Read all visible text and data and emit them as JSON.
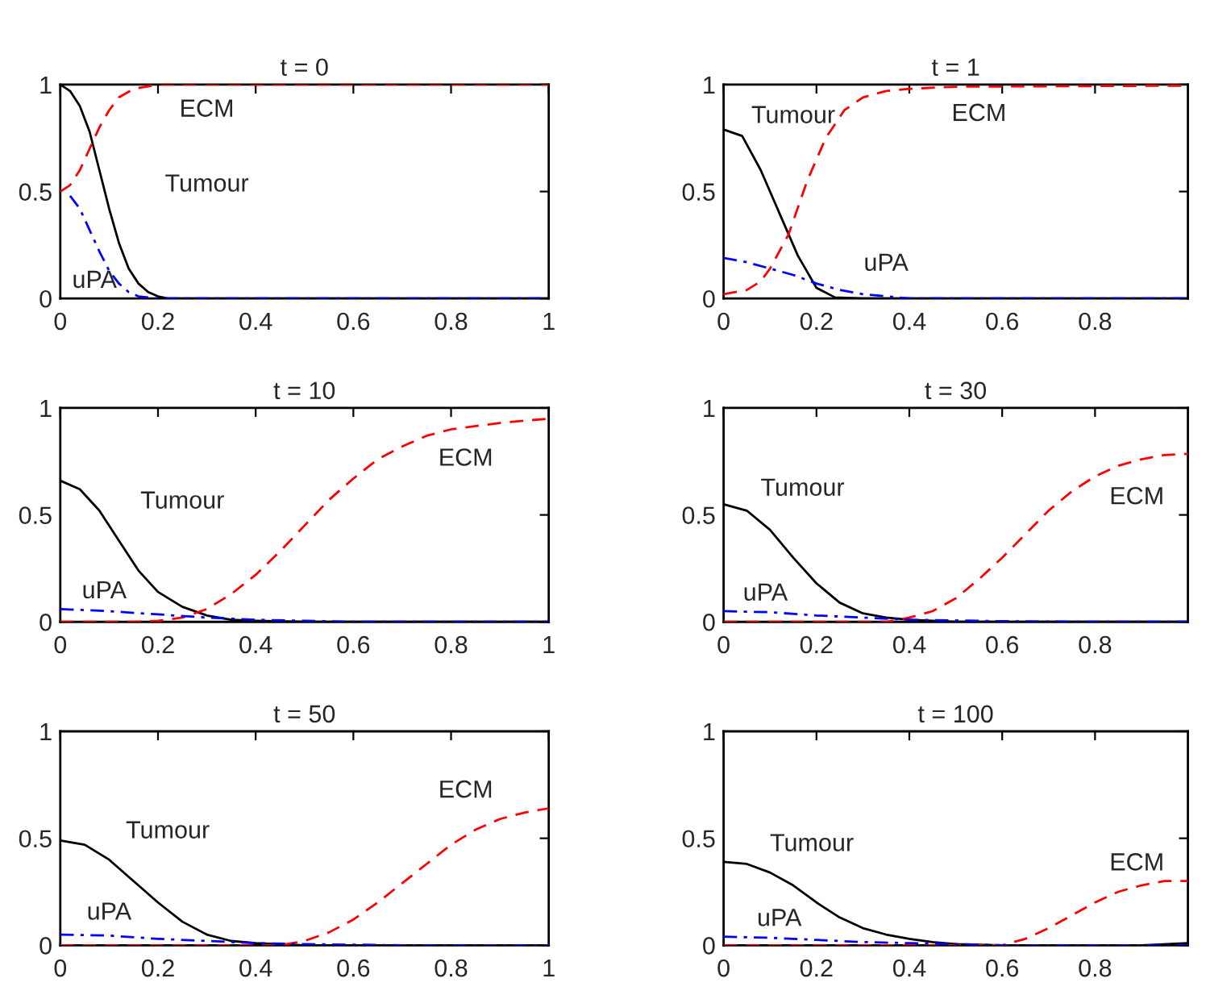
{
  "chart_data": [
    {
      "type": "line",
      "title": "t = 0",
      "xlim": [
        0,
        1
      ],
      "ylim": [
        0,
        1
      ],
      "xticks": [
        0,
        0.2,
        0.4,
        0.6,
        0.8,
        1
      ],
      "yticks": [
        0,
        0.5,
        1
      ],
      "grid": false,
      "series": [
        {
          "color": "#000000",
          "line_style": "solid",
          "x": [
            0,
            0.02,
            0.04,
            0.06,
            0.08,
            0.1,
            0.12,
            0.14,
            0.16,
            0.18,
            0.2,
            0.22,
            0.3,
            1
          ],
          "values": [
            1,
            0.97,
            0.9,
            0.78,
            0.6,
            0.42,
            0.26,
            0.14,
            0.07,
            0.03,
            0.01,
            0,
            0,
            0
          ]
        },
        {
          "color": "#ff0000",
          "line_style": "dashed",
          "x": [
            0,
            0.02,
            0.04,
            0.06,
            0.08,
            0.1,
            0.12,
            0.15,
            0.2,
            1
          ],
          "values": [
            0.5,
            0.53,
            0.6,
            0.7,
            0.8,
            0.88,
            0.94,
            0.98,
            1,
            1
          ]
        },
        {
          "color": "#0000ff",
          "line_style": "dashdot",
          "x": [
            0.02,
            0.04,
            0.06,
            0.08,
            0.1,
            0.12,
            0.14,
            0.16,
            0.2,
            1
          ],
          "values": [
            0.48,
            0.42,
            0.32,
            0.22,
            0.13,
            0.07,
            0.03,
            0.01,
            0,
            0
          ]
        }
      ],
      "annotations": [
        "ECM",
        "Tumour",
        "uPA"
      ]
    },
    {
      "type": "line",
      "title": "t = 1",
      "xlim": [
        0,
        1
      ],
      "ylim": [
        0,
        1
      ],
      "xticks": [
        0,
        0.2,
        0.4,
        0.6,
        0.8
      ],
      "yticks": [
        0,
        0.5,
        1
      ],
      "grid": false,
      "series": [
        {
          "color": "#000000",
          "line_style": "solid",
          "x": [
            0,
            0.04,
            0.08,
            0.12,
            0.16,
            0.2,
            0.24,
            0.3,
            1
          ],
          "values": [
            0.79,
            0.76,
            0.6,
            0.4,
            0.2,
            0.05,
            0.005,
            0,
            0
          ]
        },
        {
          "color": "#ff0000",
          "line_style": "dashed",
          "x": [
            0,
            0.05,
            0.08,
            0.1,
            0.14,
            0.18,
            0.22,
            0.26,
            0.3,
            0.35,
            0.4,
            0.5,
            1
          ],
          "values": [
            0.02,
            0.04,
            0.08,
            0.14,
            0.3,
            0.55,
            0.75,
            0.88,
            0.94,
            0.97,
            0.98,
            0.99,
            0.995
          ]
        },
        {
          "color": "#0000ff",
          "line_style": "dashdot",
          "x": [
            0,
            0.05,
            0.1,
            0.15,
            0.2,
            0.25,
            0.3,
            0.35,
            0.4,
            1
          ],
          "values": [
            0.19,
            0.17,
            0.14,
            0.11,
            0.07,
            0.04,
            0.02,
            0.01,
            0,
            0
          ]
        }
      ],
      "annotations": [
        "Tumour",
        "ECM",
        "uPA"
      ]
    },
    {
      "type": "line",
      "title": "t = 10",
      "xlim": [
        0,
        1
      ],
      "ylim": [
        0,
        1
      ],
      "xticks": [
        0,
        0.2,
        0.4,
        0.6,
        0.8,
        1
      ],
      "yticks": [
        0,
        0.5,
        1
      ],
      "grid": false,
      "series": [
        {
          "color": "#000000",
          "line_style": "solid",
          "x": [
            0,
            0.04,
            0.08,
            0.12,
            0.16,
            0.2,
            0.25,
            0.3,
            0.35,
            0.4,
            0.5,
            1
          ],
          "values": [
            0.66,
            0.62,
            0.52,
            0.38,
            0.24,
            0.14,
            0.07,
            0.03,
            0.01,
            0.005,
            0,
            0
          ]
        },
        {
          "color": "#ff0000",
          "line_style": "dashed",
          "x": [
            0,
            0.15,
            0.2,
            0.25,
            0.3,
            0.35,
            0.4,
            0.45,
            0.5,
            0.55,
            0.6,
            0.65,
            0.7,
            0.75,
            0.8,
            0.9,
            1
          ],
          "values": [
            0,
            0,
            0.005,
            0.02,
            0.06,
            0.13,
            0.22,
            0.33,
            0.45,
            0.57,
            0.67,
            0.76,
            0.82,
            0.87,
            0.9,
            0.93,
            0.95
          ]
        },
        {
          "color": "#0000ff",
          "line_style": "dashdot",
          "x": [
            0,
            0.1,
            0.2,
            0.3,
            0.4,
            0.5,
            0.6,
            1
          ],
          "values": [
            0.06,
            0.05,
            0.035,
            0.02,
            0.01,
            0.005,
            0,
            0
          ]
        }
      ],
      "annotations": [
        "Tumour",
        "ECM",
        "uPA"
      ]
    },
    {
      "type": "line",
      "title": "t = 30",
      "xlim": [
        0,
        1
      ],
      "ylim": [
        0,
        1
      ],
      "xticks": [
        0,
        0.2,
        0.4,
        0.6,
        0.8
      ],
      "yticks": [
        0,
        0.5,
        1
      ],
      "grid": false,
      "series": [
        {
          "color": "#000000",
          "line_style": "solid",
          "x": [
            0,
            0.05,
            0.1,
            0.15,
            0.2,
            0.25,
            0.3,
            0.35,
            0.4,
            0.5,
            1
          ],
          "values": [
            0.55,
            0.52,
            0.43,
            0.3,
            0.18,
            0.09,
            0.04,
            0.02,
            0.01,
            0,
            0
          ]
        },
        {
          "color": "#ff0000",
          "line_style": "dashed",
          "x": [
            0,
            0.35,
            0.4,
            0.45,
            0.5,
            0.55,
            0.6,
            0.65,
            0.7,
            0.75,
            0.8,
            0.85,
            0.9,
            0.95,
            1
          ],
          "values": [
            0,
            0,
            0.02,
            0.05,
            0.11,
            0.2,
            0.3,
            0.41,
            0.52,
            0.61,
            0.68,
            0.73,
            0.76,
            0.78,
            0.785
          ]
        },
        {
          "color": "#0000ff",
          "line_style": "dashdot",
          "x": [
            0,
            0.1,
            0.2,
            0.3,
            0.4,
            0.6,
            0.8,
            1
          ],
          "values": [
            0.05,
            0.045,
            0.03,
            0.02,
            0.01,
            0.003,
            0,
            0
          ]
        }
      ],
      "annotations": [
        "Tumour",
        "ECM",
        "uPA"
      ]
    },
    {
      "type": "line",
      "title": "t = 50",
      "xlim": [
        0,
        1
      ],
      "ylim": [
        0,
        1
      ],
      "xticks": [
        0,
        0.2,
        0.4,
        0.6,
        0.8,
        1
      ],
      "yticks": [
        0,
        0.5,
        1
      ],
      "grid": false,
      "series": [
        {
          "color": "#000000",
          "line_style": "solid",
          "x": [
            0,
            0.05,
            0.1,
            0.15,
            0.2,
            0.25,
            0.3,
            0.35,
            0.4,
            0.5,
            1
          ],
          "values": [
            0.49,
            0.47,
            0.4,
            0.3,
            0.2,
            0.11,
            0.05,
            0.02,
            0.01,
            0,
            0
          ]
        },
        {
          "color": "#ff0000",
          "line_style": "dashed",
          "x": [
            0,
            0.45,
            0.5,
            0.55,
            0.6,
            0.65,
            0.7,
            0.75,
            0.8,
            0.85,
            0.9,
            0.95,
            1
          ],
          "values": [
            0,
            0,
            0.02,
            0.06,
            0.12,
            0.2,
            0.29,
            0.38,
            0.47,
            0.54,
            0.59,
            0.62,
            0.64
          ]
        },
        {
          "color": "#0000ff",
          "line_style": "dashdot",
          "x": [
            0,
            0.1,
            0.2,
            0.3,
            0.4,
            0.5,
            0.7,
            1
          ],
          "values": [
            0.05,
            0.045,
            0.03,
            0.02,
            0.01,
            0.005,
            0,
            0
          ]
        }
      ],
      "annotations": [
        "Tumour",
        "ECM",
        "uPA"
      ]
    },
    {
      "type": "line",
      "title": "t = 100",
      "xlim": [
        0,
        1
      ],
      "ylim": [
        0,
        1
      ],
      "xticks": [
        0,
        0.2,
        0.4,
        0.6,
        0.8
      ],
      "yticks": [
        0,
        0.5,
        1
      ],
      "grid": false,
      "series": [
        {
          "color": "#000000",
          "line_style": "solid",
          "x": [
            0,
            0.05,
            0.1,
            0.15,
            0.2,
            0.25,
            0.3,
            0.35,
            0.4,
            0.45,
            0.5,
            0.6,
            0.9,
            1
          ],
          "values": [
            0.39,
            0.38,
            0.34,
            0.28,
            0.2,
            0.13,
            0.08,
            0.05,
            0.03,
            0.015,
            0.005,
            0,
            0,
            0.01
          ]
        },
        {
          "color": "#ff0000",
          "line_style": "dashed",
          "x": [
            0,
            0.6,
            0.65,
            0.7,
            0.75,
            0.8,
            0.85,
            0.9,
            0.95,
            1
          ],
          "values": [
            0,
            0,
            0.03,
            0.08,
            0.14,
            0.2,
            0.25,
            0.28,
            0.3,
            0.3
          ]
        },
        {
          "color": "#0000ff",
          "line_style": "dashdot",
          "x": [
            0,
            0.1,
            0.2,
            0.3,
            0.4,
            0.5,
            0.6,
            1
          ],
          "values": [
            0.04,
            0.035,
            0.025,
            0.015,
            0.01,
            0.005,
            0,
            0
          ]
        }
      ],
      "annotations": [
        "Tumour",
        "ECM",
        "uPA"
      ]
    }
  ]
}
